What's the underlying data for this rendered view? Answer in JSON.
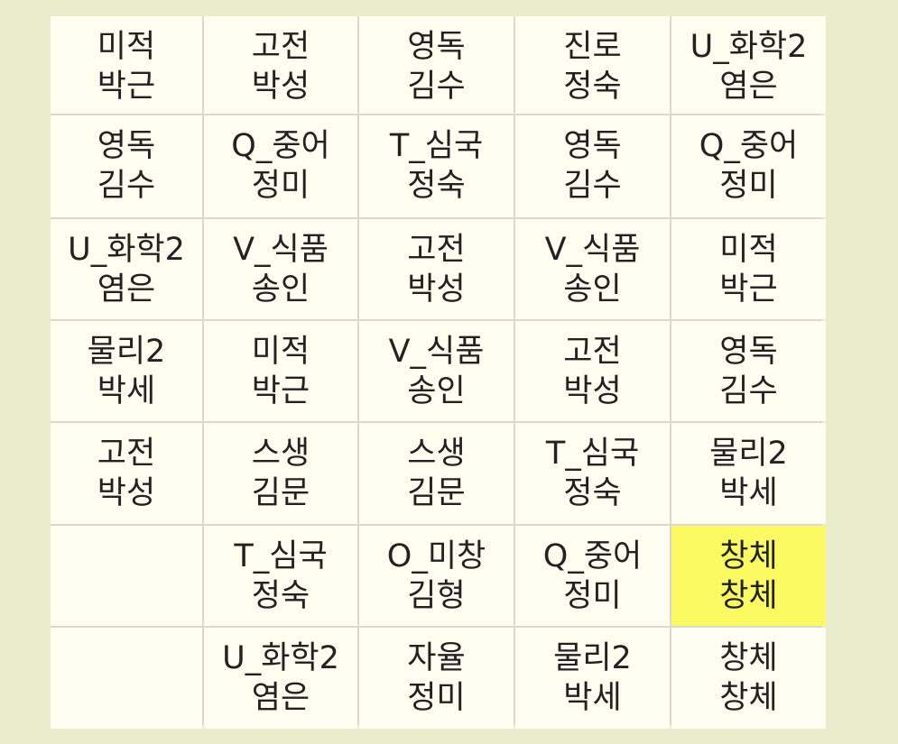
{
  "highlight_color": "#fbfa63",
  "rows": [
    [
      {
        "subject": "미적",
        "teacher": "박근"
      },
      {
        "subject": "고전",
        "teacher": "박성"
      },
      {
        "subject": "영독",
        "teacher": "김수"
      },
      {
        "subject": "진로",
        "teacher": "정숙"
      },
      {
        "subject": "U_화학2",
        "teacher": "염은"
      }
    ],
    [
      {
        "subject": "영독",
        "teacher": "김수"
      },
      {
        "subject": "Q_중어",
        "teacher": "정미"
      },
      {
        "subject": "T_심국",
        "teacher": "정숙"
      },
      {
        "subject": "영독",
        "teacher": "김수"
      },
      {
        "subject": "Q_중어",
        "teacher": "정미"
      }
    ],
    [
      {
        "subject": "U_화학2",
        "teacher": "염은"
      },
      {
        "subject": "V_식품",
        "teacher": "송인"
      },
      {
        "subject": "고전",
        "teacher": "박성"
      },
      {
        "subject": "V_식품",
        "teacher": "송인"
      },
      {
        "subject": "미적",
        "teacher": "박근"
      }
    ],
    [
      {
        "subject": "물리2",
        "teacher": "박세"
      },
      {
        "subject": "미적",
        "teacher": "박근"
      },
      {
        "subject": "V_식품",
        "teacher": "송인"
      },
      {
        "subject": "고전",
        "teacher": "박성"
      },
      {
        "subject": "영독",
        "teacher": "김수"
      }
    ],
    [
      {
        "subject": "고전",
        "teacher": "박성"
      },
      {
        "subject": "스생",
        "teacher": "김문"
      },
      {
        "subject": "스생",
        "teacher": "김문"
      },
      {
        "subject": "T_심국",
        "teacher": "정숙"
      },
      {
        "subject": "물리2",
        "teacher": "박세"
      }
    ],
    [
      {
        "subject": "",
        "teacher": ""
      },
      {
        "subject": "T_심국",
        "teacher": "정숙"
      },
      {
        "subject": "O_미창",
        "teacher": "김형"
      },
      {
        "subject": "Q_중어",
        "teacher": "정미"
      },
      {
        "subject": "창체",
        "teacher": "창체",
        "highlighted": true
      }
    ],
    [
      {
        "subject": "",
        "teacher": ""
      },
      {
        "subject": "U_화학2",
        "teacher": "염은"
      },
      {
        "subject": "자율",
        "teacher": "정미"
      },
      {
        "subject": "물리2",
        "teacher": "박세"
      },
      {
        "subject": "창체",
        "teacher": "창체"
      }
    ]
  ]
}
